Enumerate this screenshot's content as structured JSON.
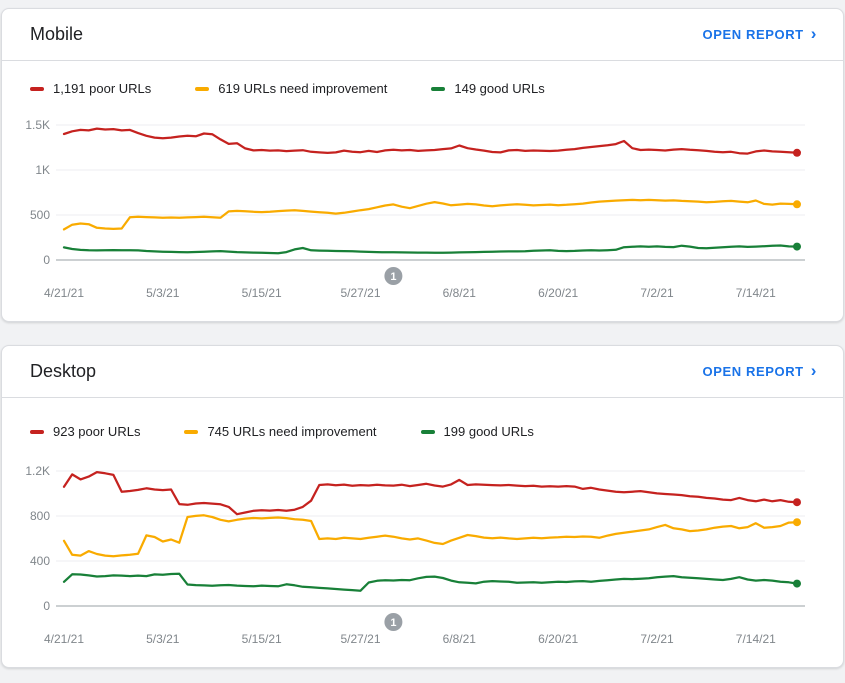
{
  "colors": {
    "poor": "#c5221f",
    "needs_improvement": "#f9ab00",
    "good": "#188038",
    "link": "#1a73e8",
    "axis_text": "#80868b",
    "gridline": "#eceef0",
    "axis_line": "#9aa0a6",
    "marker_bg": "#9aa0a6"
  },
  "cards": [
    {
      "title": "Mobile",
      "open_report_label": "OPEN REPORT",
      "legend": [
        {
          "label": "1,191 poor URLs",
          "color_key": "poor"
        },
        {
          "label": "619 URLs need improvement",
          "color_key": "needs_improvement"
        },
        {
          "label": "149 good URLs",
          "color_key": "good"
        }
      ]
    },
    {
      "title": "Desktop",
      "open_report_label": "OPEN REPORT",
      "legend": [
        {
          "label": "923 poor URLs",
          "color_key": "poor"
        },
        {
          "label": "745 URLs need improvement",
          "color_key": "needs_improvement"
        },
        {
          "label": "199 good URLs",
          "color_key": "good"
        }
      ]
    }
  ],
  "chart_data": [
    {
      "type": "line",
      "title": "Mobile",
      "x_start_date": "4/21/21",
      "x_tick_labels": [
        "4/21/21",
        "5/3/21",
        "5/15/21",
        "5/27/21",
        "6/8/21",
        "6/20/21",
        "7/2/21",
        "7/14/21"
      ],
      "x_tick_days": [
        0,
        12,
        24,
        36,
        48,
        60,
        72,
        84
      ],
      "x_range_days": 89,
      "ylim": [
        0,
        1500
      ],
      "y_ticks": [
        0,
        500,
        1000,
        1500
      ],
      "y_tick_labels": [
        "0",
        "500",
        "1K",
        "1.5K"
      ],
      "grid": true,
      "legend_position": "top",
      "annotation_marker": {
        "label": "1",
        "day": 40
      },
      "series": [
        {
          "name": "poor URLs",
          "color_key": "poor",
          "end_value": 1191,
          "values": [
            1400,
            1430,
            1445,
            1440,
            1460,
            1450,
            1455,
            1440,
            1445,
            1410,
            1380,
            1360,
            1352,
            1360,
            1372,
            1380,
            1375,
            1405,
            1398,
            1340,
            1290,
            1298,
            1240,
            1218,
            1222,
            1215,
            1218,
            1210,
            1215,
            1220,
            1202,
            1196,
            1190,
            1196,
            1215,
            1203,
            1198,
            1212,
            1200,
            1218,
            1225,
            1218,
            1222,
            1212,
            1218,
            1222,
            1232,
            1240,
            1272,
            1242,
            1228,
            1215,
            1200,
            1196,
            1218,
            1222,
            1212,
            1217,
            1214,
            1211,
            1216,
            1224,
            1232,
            1246,
            1256,
            1266,
            1276,
            1288,
            1322,
            1242,
            1222,
            1227,
            1222,
            1217,
            1227,
            1232,
            1224,
            1220,
            1212,
            1202,
            1197,
            1202,
            1187,
            1182,
            1207,
            1217,
            1207,
            1202,
            1197,
            1191
          ]
        },
        {
          "name": "URLs need improvement",
          "color_key": "needs_improvement",
          "end_value": 619,
          "values": [
            340,
            392,
            406,
            398,
            358,
            350,
            346,
            350,
            474,
            480,
            477,
            473,
            470,
            472,
            469,
            473,
            477,
            480,
            474,
            469,
            540,
            546,
            541,
            536,
            532,
            537,
            543,
            549,
            552,
            545,
            538,
            531,
            526,
            516,
            524,
            539,
            553,
            566,
            586,
            606,
            618,
            592,
            576,
            601,
            626,
            643,
            628,
            608,
            616,
            623,
            618,
            606,
            598,
            607,
            613,
            619,
            613,
            607,
            611,
            616,
            609,
            613,
            620,
            627,
            639,
            649,
            655,
            660,
            665,
            668,
            664,
            668,
            664,
            660,
            662,
            657,
            653,
            649,
            641,
            646,
            652,
            657,
            649,
            641,
            661,
            623,
            616,
            627,
            623,
            619
          ]
        },
        {
          "name": "good URLs",
          "color_key": "good",
          "end_value": 149,
          "values": [
            140,
            122,
            112,
            108,
            107,
            109,
            110,
            109,
            108,
            107,
            100,
            95,
            92,
            90,
            88,
            86,
            89,
            92,
            95,
            99,
            93,
            88,
            84,
            82,
            80,
            78,
            76,
            88,
            118,
            133,
            108,
            104,
            102,
            100,
            99,
            97,
            93,
            90,
            88,
            86,
            85,
            84,
            83,
            82,
            82,
            81,
            80,
            82,
            84,
            86,
            88,
            90,
            92,
            94,
            95,
            96,
            98,
            102,
            106,
            108,
            101,
            99,
            101,
            106,
            109,
            106,
            109,
            113,
            142,
            148,
            151,
            148,
            151,
            146,
            143,
            159,
            149,
            133,
            131,
            136,
            141,
            148,
            151,
            146,
            149,
            153,
            158,
            161,
            151,
            149
          ]
        }
      ]
    },
    {
      "type": "line",
      "title": "Desktop",
      "x_start_date": "4/21/21",
      "x_tick_labels": [
        "4/21/21",
        "5/3/21",
        "5/15/21",
        "5/27/21",
        "6/8/21",
        "6/20/21",
        "7/2/21",
        "7/14/21"
      ],
      "x_tick_days": [
        0,
        12,
        24,
        36,
        48,
        60,
        72,
        84
      ],
      "x_range_days": 89,
      "ylim": [
        0,
        1200
      ],
      "y_ticks": [
        0,
        400,
        800,
        1200
      ],
      "y_tick_labels": [
        "0",
        "400",
        "800",
        "1.2K"
      ],
      "grid": true,
      "legend_position": "top",
      "annotation_marker": {
        "label": "1",
        "day": 40
      },
      "series": [
        {
          "name": "poor URLs",
          "color_key": "poor",
          "end_value": 923,
          "values": [
            1060,
            1170,
            1125,
            1150,
            1190,
            1180,
            1165,
            1015,
            1022,
            1032,
            1046,
            1036,
            1030,
            1036,
            906,
            900,
            911,
            916,
            910,
            904,
            881,
            816,
            831,
            846,
            851,
            848,
            853,
            846,
            856,
            881,
            936,
            1076,
            1081,
            1073,
            1079,
            1069,
            1075,
            1071,
            1077,
            1072,
            1070,
            1078,
            1066,
            1076,
            1086,
            1071,
            1061,
            1081,
            1121,
            1076,
            1081,
            1078,
            1075,
            1072,
            1076,
            1070,
            1066,
            1069,
            1061,
            1064,
            1061,
            1066,
            1061,
            1041,
            1051,
            1036,
            1026,
            1016,
            1011,
            1016,
            1021,
            1011,
            1001,
            996,
            991,
            986,
            976,
            971,
            961,
            956,
            946,
            941,
            961,
            941,
            931,
            946,
            931,
            941,
            926,
            923
          ]
        },
        {
          "name": "URLs need improvement",
          "color_key": "needs_improvement",
          "end_value": 745,
          "values": [
            580,
            455,
            448,
            488,
            462,
            448,
            443,
            450,
            455,
            465,
            628,
            613,
            573,
            591,
            563,
            791,
            801,
            806,
            791,
            766,
            752,
            766,
            777,
            782,
            779,
            783,
            787,
            781,
            771,
            766,
            756,
            596,
            601,
            596,
            606,
            601,
            596,
            606,
            616,
            626,
            616,
            601,
            591,
            601,
            581,
            561,
            551,
            581,
            606,
            631,
            621,
            608,
            603,
            608,
            601,
            596,
            601,
            606,
            603,
            608,
            611,
            616,
            613,
            618,
            616,
            606,
            626,
            641,
            651,
            661,
            671,
            681,
            701,
            721,
            691,
            681,
            666,
            671,
            681,
            696,
            706,
            711,
            691,
            701,
            736,
            696,
            701,
            711,
            741,
            745
          ]
        },
        {
          "name": "good URLs",
          "color_key": "good",
          "end_value": 199,
          "values": [
            215,
            282,
            280,
            272,
            262,
            266,
            272,
            270,
            266,
            270,
            266,
            281,
            278,
            284,
            286,
            191,
            186,
            183,
            180,
            184,
            187,
            181,
            178,
            175,
            181,
            178,
            175,
            193,
            184,
            171,
            166,
            161,
            156,
            151,
            146,
            141,
            136,
            209,
            224,
            229,
            227,
            231,
            229,
            246,
            259,
            261,
            249,
            226,
            211,
            206,
            201,
            216,
            221,
            218,
            215,
            206,
            209,
            211,
            206,
            211,
            216,
            213,
            219,
            221,
            216,
            223,
            229,
            236,
            241,
            239,
            243,
            246,
            256,
            261,
            266,
            256,
            251,
            246,
            241,
            236,
            231,
            241,
            256,
            236,
            226,
            231,
            226,
            216,
            211,
            199
          ]
        }
      ]
    }
  ]
}
